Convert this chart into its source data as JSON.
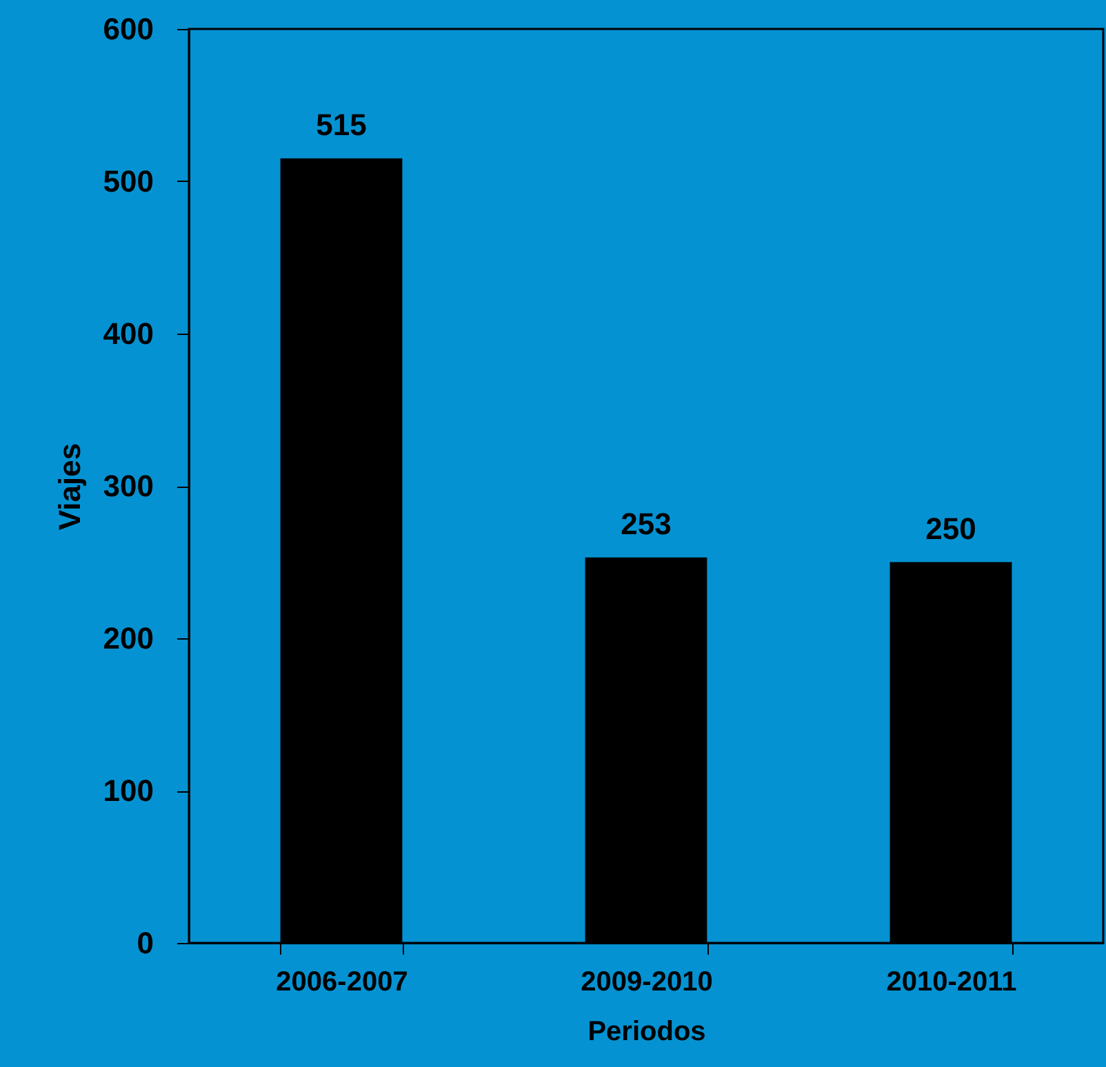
{
  "chart_data": {
    "type": "bar",
    "xlabel": "Periodos",
    "ylabel": "Viajes",
    "categories": [
      "2006-2007",
      "2009-2010",
      "2010-2011"
    ],
    "values": [
      515,
      253,
      250
    ],
    "color": "#000000",
    "ylim": [
      0,
      600
    ],
    "yticks": [
      0,
      100,
      200,
      300,
      400,
      500,
      600
    ],
    "data_labels": true,
    "grid": false
  }
}
